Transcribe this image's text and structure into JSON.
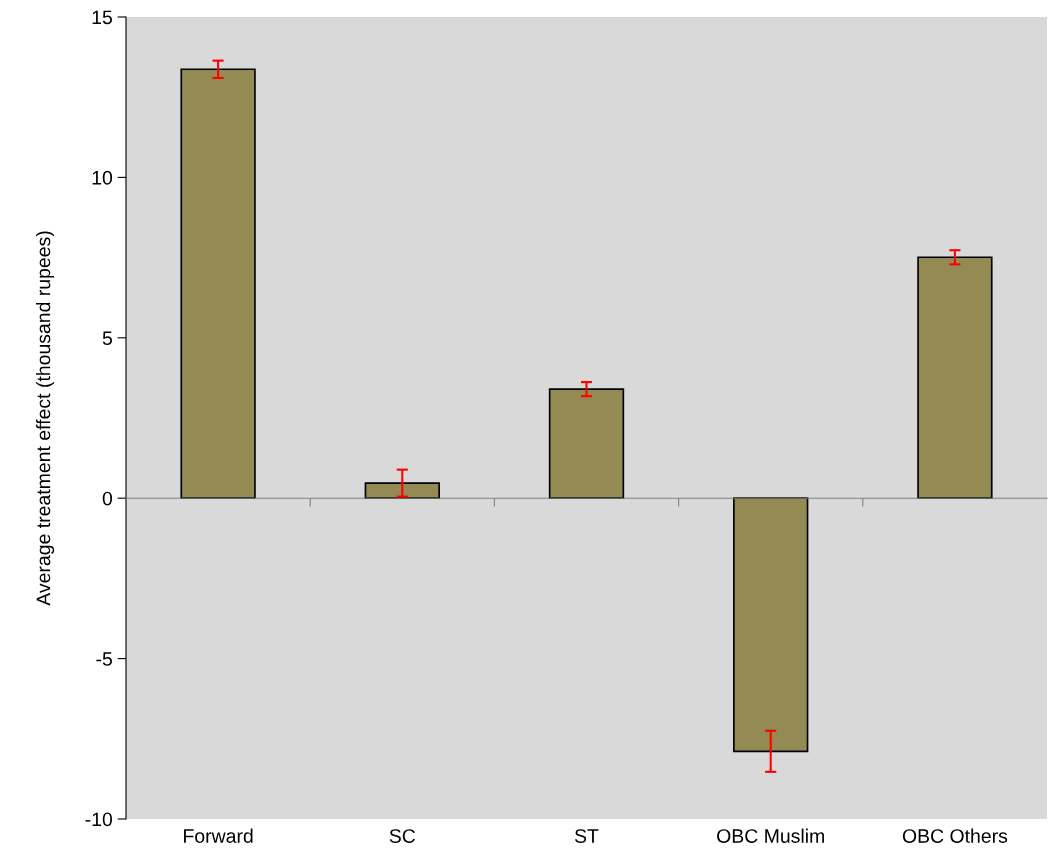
{
  "chart_data": {
    "type": "bar",
    "ylabel": "Average treatment effect (thousand rupees)",
    "categories": [
      "Forward",
      "SC",
      "ST",
      "OBC Muslim",
      "OBC Others"
    ],
    "values": [
      13.37,
      0.47,
      3.4,
      -7.89,
      7.51
    ],
    "errors": [
      0.27,
      0.42,
      0.22,
      0.64,
      0.22
    ],
    "color": "#948a54",
    "ylim": [
      -10,
      15
    ],
    "yticks": [
      {
        "value": -10,
        "label": "-10"
      },
      {
        "value": -5,
        "label": "-5"
      },
      0,
      5,
      10,
      15
    ]
  }
}
